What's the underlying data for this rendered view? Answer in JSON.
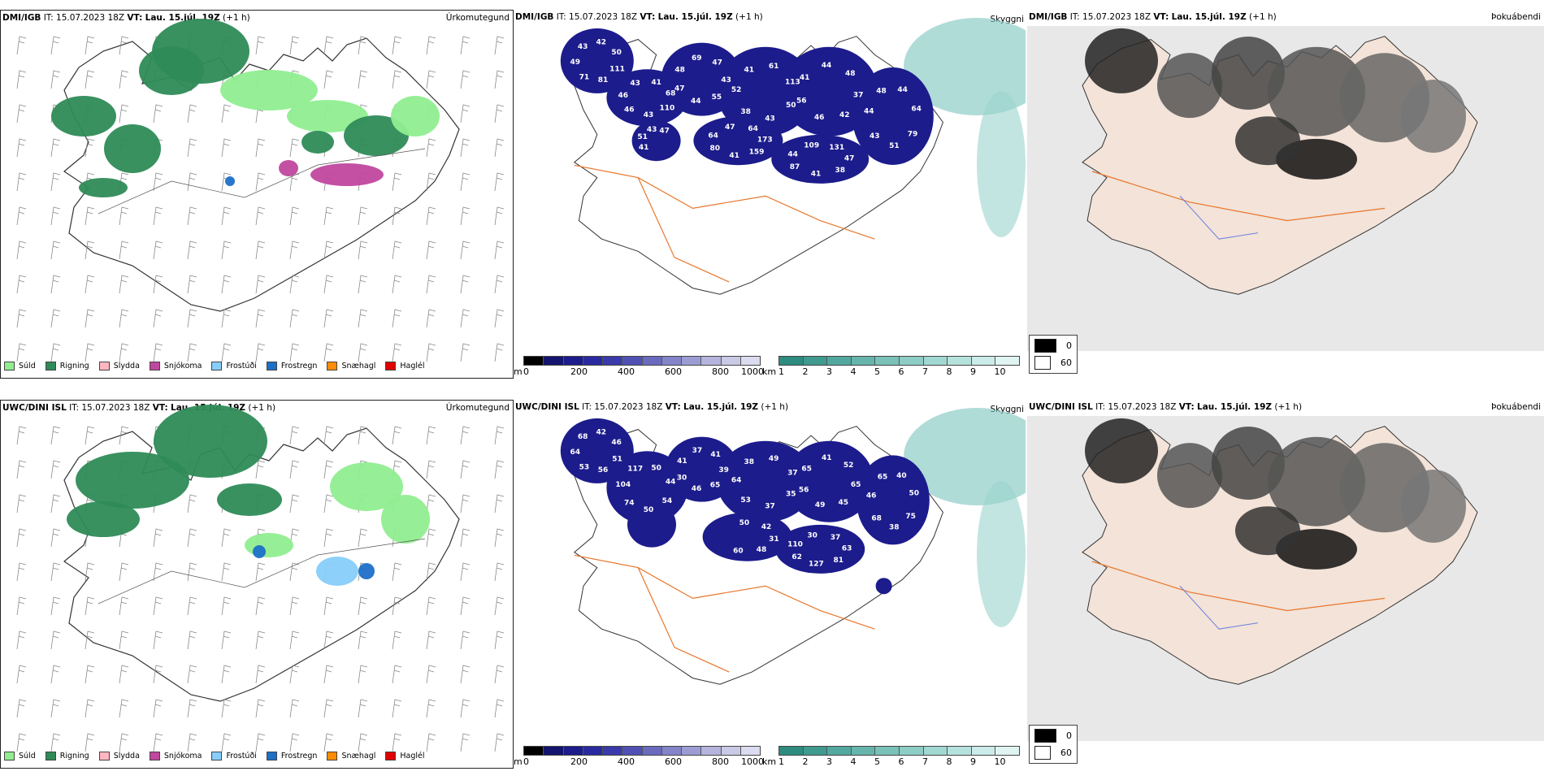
{
  "rows": [
    {
      "model": "DMI/IGB",
      "it_label": "IT:",
      "it_value": "15.07.2023 18Z",
      "vt_label": "VT:",
      "vt_value": "Lau. 15.júl. 19Z",
      "lead": "(+1 h)",
      "precip_title": "Úrkomutegund",
      "vis_title": "Skyggni",
      "cloud_title": "Þokuábendi",
      "snow_labels": [
        "81",
        "71",
        "49",
        "43",
        "42",
        "50",
        "111",
        "46",
        "46",
        "43",
        "41",
        "68",
        "110",
        "43",
        "48",
        "69",
        "47",
        "43",
        "55",
        "44",
        "47",
        "61",
        "113",
        "50",
        "43",
        "38",
        "52",
        "41",
        "37",
        "42",
        "46",
        "56",
        "41",
        "44",
        "48",
        "51",
        "43",
        "44",
        "48",
        "44",
        "64",
        "79",
        "47",
        "38",
        "41",
        "87",
        "44",
        "109",
        "131",
        "47",
        "64",
        "173",
        "159",
        "41",
        "80",
        "64",
        "41",
        "51",
        "43",
        "47"
      ]
    },
    {
      "model": "UWC/DINI ISL",
      "it_label": "IT:",
      "it_value": "15.07.2023 18Z",
      "vt_label": "VT:",
      "vt_value": "Lau. 15.júl. 19Z",
      "lead": "(+1 h)",
      "precip_title": "Úrkomutegund",
      "vis_title": "Skyggni",
      "cloud_title": "Þokuábendi",
      "snow_labels": [
        "56",
        "53",
        "64",
        "68",
        "42",
        "46",
        "51",
        "74",
        "104",
        "117",
        "50",
        "44",
        "54",
        "50",
        "41",
        "37",
        "41",
        "39",
        "65",
        "46",
        "30",
        "49",
        "37",
        "35",
        "37",
        "53",
        "64",
        "38",
        "65",
        "45",
        "49",
        "56",
        "65",
        "41",
        "52",
        "38",
        "68",
        "46",
        "65",
        "40",
        "50",
        "75",
        "63",
        "81",
        "127",
        "62",
        "110",
        "30",
        "37",
        "50",
        "42",
        "31",
        "48",
        "60"
      ]
    }
  ],
  "precip_legend": [
    {
      "label": "Súld",
      "color": "#90ee90"
    },
    {
      "label": "Rigning",
      "color": "#2e8b57"
    },
    {
      "label": "Slydda",
      "color": "#ffb6c1"
    },
    {
      "label": "Snjókoma",
      "color": "#c0479e"
    },
    {
      "label": "Frostúði",
      "color": "#87cefa"
    },
    {
      "label": "Frostregn",
      "color": "#1e6fc8"
    },
    {
      "label": "Snæhagl",
      "color": "#ff8c00"
    },
    {
      "label": "Haglél",
      "color": "#e00000"
    }
  ],
  "height_bar": {
    "unit": "m",
    "ticks": [
      "0",
      "200",
      "400",
      "600",
      "800",
      "1000"
    ]
  },
  "vis_bar": {
    "unit": "km",
    "ticks": [
      "1",
      "2",
      "3",
      "4",
      "5",
      "6",
      "7",
      "8",
      "9",
      "10"
    ]
  },
  "cloud_legend": [
    {
      "label": "0",
      "color": "#000000"
    },
    {
      "label": "60",
      "color": "#ffffff"
    }
  ],
  "colors": {
    "rain": "#2e8b57",
    "drizzle": "#90ee90",
    "snow": "#c0479e",
    "freezingdrizzle": "#87cefa",
    "freezingrain": "#1e6fc8",
    "navy": "#1c1c8c",
    "teal": "#5aa8a0",
    "roads": "#e8762b",
    "land": "#f3e3d8"
  }
}
